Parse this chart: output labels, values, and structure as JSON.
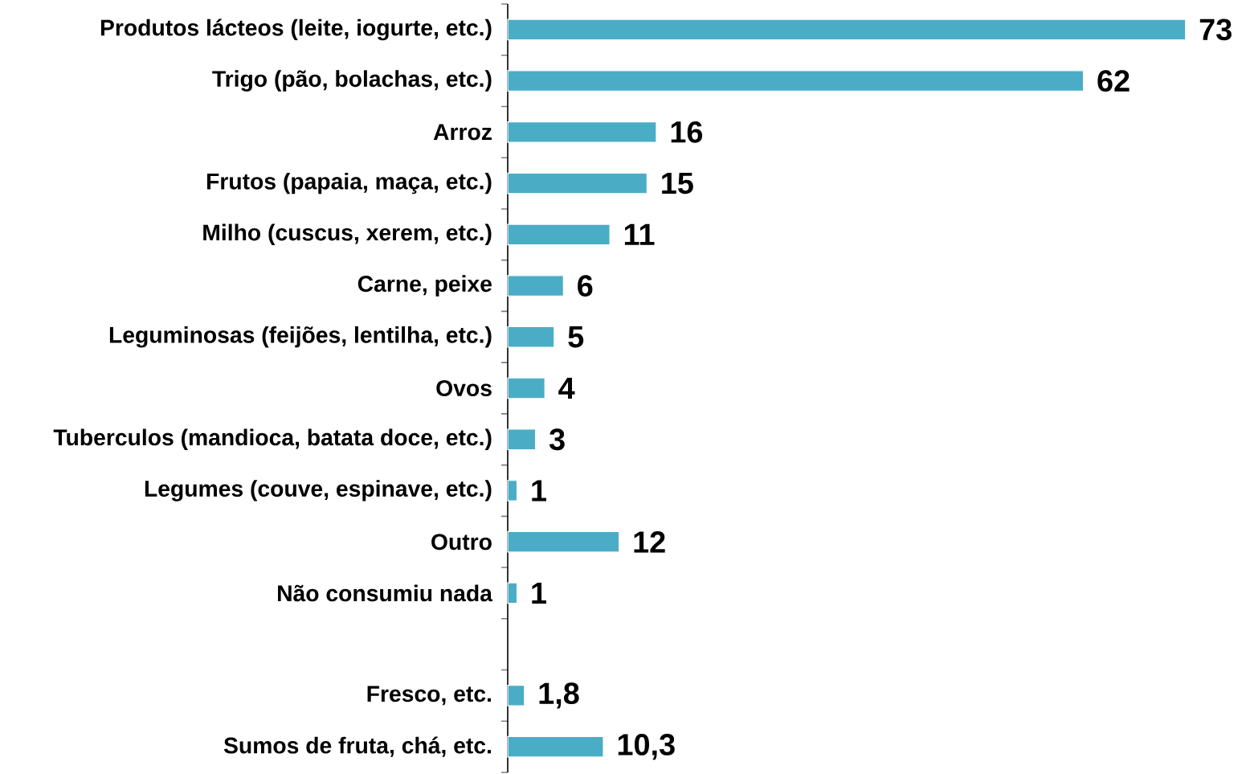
{
  "chart_data": {
    "type": "bar",
    "orientation": "horizontal",
    "color": "#4bacc6",
    "data_labels": true,
    "categories": [
      "Produtos lácteos (leite, iogurte, etc.)",
      "Trigo (pão, bolachas, etc.)",
      "Arroz",
      "Frutos  (papaia, maça, etc.)",
      "Milho (cuscus, xerem, etc.)",
      "Carne, peixe",
      "Leguminosas (feijões, lentilha, etc.)",
      "Ovos",
      "Tuberculos (mandioca, batata doce, etc.)",
      "Legumes (couve, espinave, etc.)",
      "Outro",
      "Não consumiu nada",
      null,
      "Fresco, etc.",
      "Sumos de fruta, chá, etc."
    ],
    "values": [
      73,
      62,
      16,
      15,
      11,
      6,
      5,
      4,
      3,
      1,
      12,
      1,
      null,
      1.8,
      10.3
    ],
    "value_labels": [
      "73",
      "62",
      "16",
      "15",
      "11",
      "6",
      "5",
      "4",
      "3",
      "1",
      "12",
      "1",
      null,
      "1,8",
      "10,3"
    ]
  }
}
